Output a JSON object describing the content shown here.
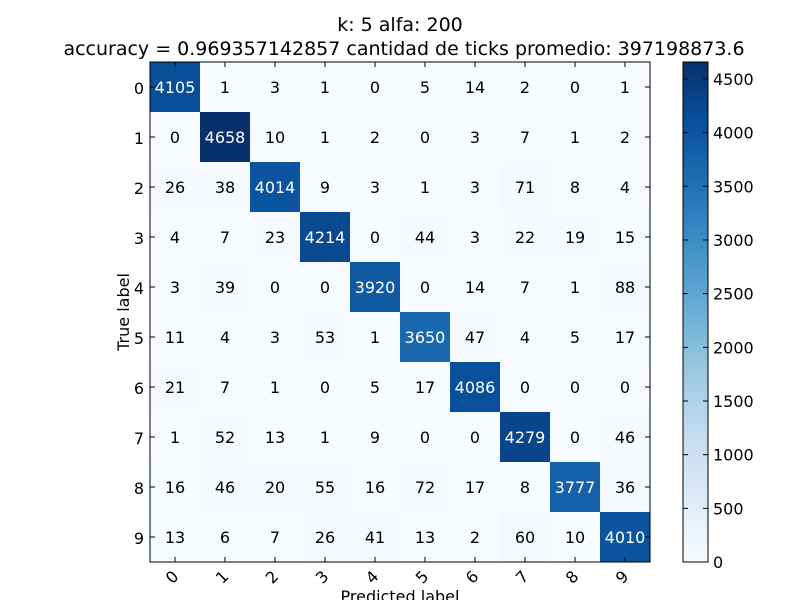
{
  "chart_data": {
    "type": "heatmap",
    "title_line1": "k: 5 alfa: 200",
    "title_line2": "accuracy = 0.969357142857 cantidad de ticks promedio: 397198873.6",
    "xlabel": "Predicted label",
    "ylabel": "True label",
    "x_categories": [
      "0",
      "1",
      "2",
      "3",
      "4",
      "5",
      "6",
      "7",
      "8",
      "9"
    ],
    "y_categories": [
      "0",
      "1",
      "2",
      "3",
      "4",
      "5",
      "6",
      "7",
      "8",
      "9"
    ],
    "values": [
      [
        4105,
        1,
        3,
        1,
        0,
        5,
        14,
        2,
        0,
        1
      ],
      [
        0,
        4658,
        10,
        1,
        2,
        0,
        3,
        7,
        1,
        2
      ],
      [
        26,
        38,
        4014,
        9,
        3,
        1,
        3,
        71,
        8,
        4
      ],
      [
        4,
        7,
        23,
        4214,
        0,
        44,
        3,
        22,
        19,
        15
      ],
      [
        3,
        39,
        0,
        0,
        3920,
        0,
        14,
        7,
        1,
        88
      ],
      [
        11,
        4,
        3,
        53,
        1,
        3650,
        47,
        4,
        5,
        17
      ],
      [
        21,
        7,
        1,
        0,
        5,
        17,
        4086,
        0,
        0,
        0
      ],
      [
        1,
        52,
        13,
        1,
        9,
        0,
        0,
        4279,
        0,
        46
      ],
      [
        16,
        46,
        20,
        55,
        16,
        72,
        17,
        8,
        3777,
        36
      ],
      [
        13,
        6,
        7,
        26,
        41,
        13,
        2,
        60,
        10,
        4010
      ]
    ],
    "colormap": "Blues",
    "colorbar": {
      "min": 0,
      "max": 4658,
      "ticks": [
        0,
        500,
        1000,
        1500,
        2000,
        2500,
        3000,
        3500,
        4000,
        4500
      ]
    },
    "grid": false
  }
}
